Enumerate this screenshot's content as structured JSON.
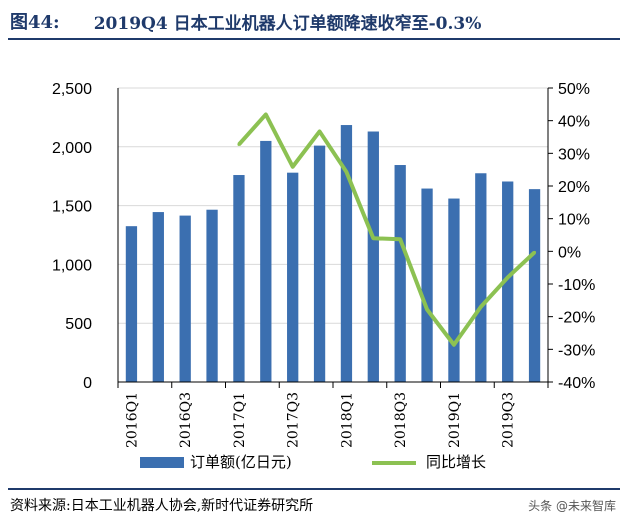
{
  "header": {
    "fig_label": "图44:",
    "title": "2019Q4 日本工业机器人订单额降速收窄至-0.3%"
  },
  "footer": {
    "source": "资料来源:日本工业机器人协会,新时代证券研究所"
  },
  "watermark": "头条 @未来智库",
  "chart_data": {
    "type": "bar+line",
    "title": "2019Q4 日本工业机器人订单额降速收窄至-0.3%",
    "categories": [
      "2016Q1",
      "2016Q2",
      "2016Q3",
      "2016Q4",
      "2017Q1",
      "2017Q2",
      "2017Q3",
      "2017Q4",
      "2018Q1",
      "2018Q2",
      "2018Q3",
      "2018Q4",
      "2019Q1",
      "2019Q2",
      "2019Q3",
      "2019Q4"
    ],
    "x_tick_labels": [
      "2016Q1",
      "",
      "2016Q3",
      "",
      "2017Q1",
      "",
      "2017Q3",
      "",
      "2018Q1",
      "",
      "2018Q3",
      "",
      "2019Q1",
      "",
      "2019Q3",
      ""
    ],
    "series": [
      {
        "name": "订单额(亿日元)",
        "type": "bar",
        "axis": "left",
        "color": "#3b6fb0",
        "values": [
          1325,
          1445,
          1415,
          1465,
          1760,
          2050,
          1780,
          2010,
          2185,
          2130,
          1845,
          1645,
          1560,
          1775,
          1705,
          1640
        ]
      },
      {
        "name": "同比增长",
        "type": "line",
        "axis": "right",
        "color": "#8cc152",
        "values": [
          null,
          null,
          null,
          null,
          32.7,
          41.9,
          25.9,
          36.7,
          24.3,
          4.0,
          3.7,
          -17.8,
          -28.6,
          -17.0,
          -8.0,
          -0.3
        ]
      }
    ],
    "y_left": {
      "min": 0,
      "max": 2500,
      "ticks": [
        0,
        500,
        1000,
        1500,
        2000,
        2500
      ],
      "tick_labels": [
        "0",
        "500",
        "1,000",
        "1,500",
        "2,000",
        "2,500"
      ]
    },
    "y_right": {
      "min": -40,
      "max": 50,
      "ticks": [
        -40,
        -30,
        -20,
        -10,
        0,
        10,
        20,
        30,
        40,
        50
      ],
      "tick_labels": [
        "-40%",
        "-30%",
        "-20%",
        "-10%",
        "0%",
        "10%",
        "20%",
        "30%",
        "40%",
        "50%"
      ]
    },
    "legend": {
      "position": "bottom",
      "items": [
        "订单额(亿日元)",
        "同比增长"
      ]
    }
  }
}
